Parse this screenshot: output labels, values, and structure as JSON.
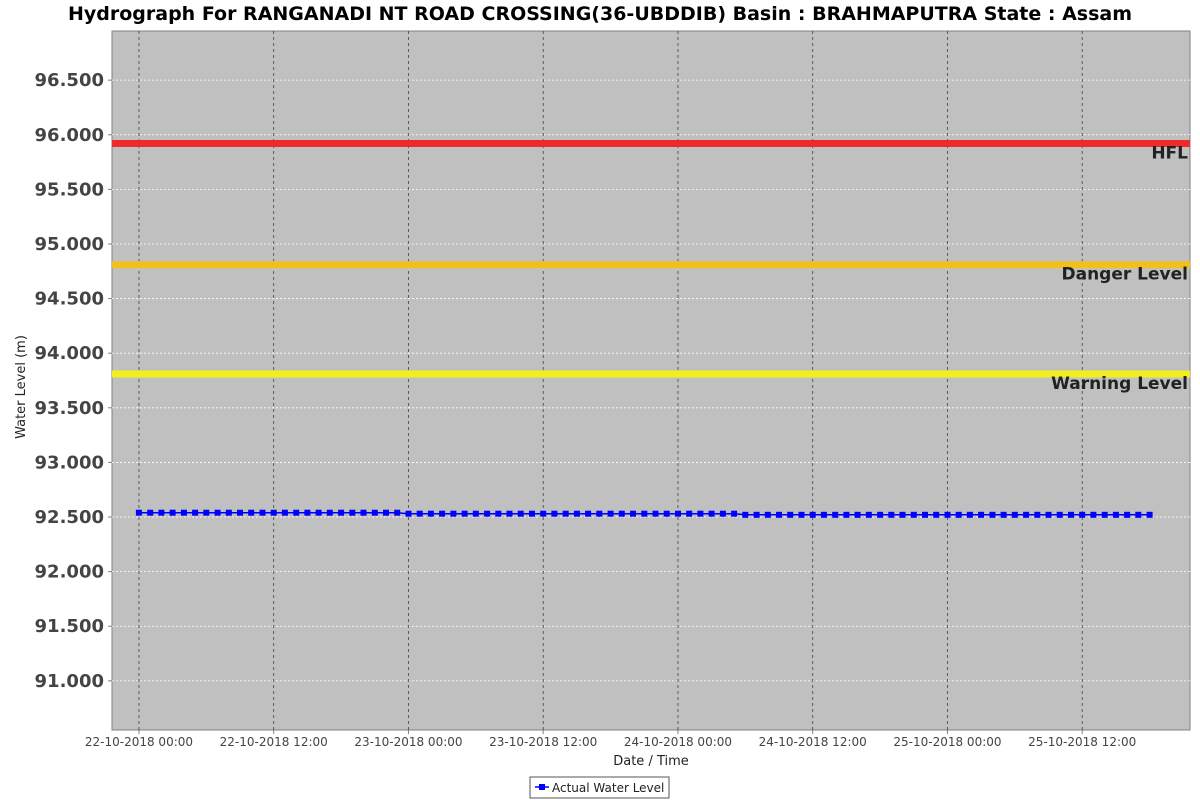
{
  "chart_data": {
    "type": "line",
    "title": "Hydrograph For RANGANADI NT ROAD CROSSING(36-UBDDIB) Basin : BRAHMAPUTRA State : Assam",
    "xlabel": "Date / Time",
    "ylabel": "Water Level (m)",
    "ylim": [
      90.55,
      96.95
    ],
    "xlim": [
      "2018-10-21T21:36",
      "2018-10-25T21:36"
    ],
    "grid": true,
    "yticks": [
      {
        "value": 91.0,
        "label": "91.000"
      },
      {
        "value": 91.5,
        "label": "91.500"
      },
      {
        "value": 92.0,
        "label": "92.000"
      },
      {
        "value": 92.5,
        "label": "92.500"
      },
      {
        "value": 93.0,
        "label": "93.000"
      },
      {
        "value": 93.5,
        "label": "93.500"
      },
      {
        "value": 94.0,
        "label": "94.000"
      },
      {
        "value": 94.5,
        "label": "94.500"
      },
      {
        "value": 95.0,
        "label": "95.000"
      },
      {
        "value": 95.5,
        "label": "95.500"
      },
      {
        "value": 96.0,
        "label": "96.000"
      },
      {
        "value": 96.5,
        "label": "96.500"
      }
    ],
    "xticks": [
      {
        "value": "2018-10-22T00:00",
        "label": "22-10-2018 00:00"
      },
      {
        "value": "2018-10-22T12:00",
        "label": "22-10-2018 12:00"
      },
      {
        "value": "2018-10-23T00:00",
        "label": "23-10-2018 00:00"
      },
      {
        "value": "2018-10-23T12:00",
        "label": "23-10-2018 12:00"
      },
      {
        "value": "2018-10-24T00:00",
        "label": "24-10-2018 00:00"
      },
      {
        "value": "2018-10-24T12:00",
        "label": "24-10-2018 12:00"
      },
      {
        "value": "2018-10-25T00:00",
        "label": "25-10-2018 00:00"
      },
      {
        "value": "2018-10-25T12:00",
        "label": "25-10-2018 12:00"
      }
    ],
    "reference_lines": [
      {
        "name": "HFL",
        "value": 95.92,
        "color": "#ee2b2b"
      },
      {
        "name": "Danger Level",
        "value": 94.81,
        "color": "#f2c01e"
      },
      {
        "name": "Warning Level",
        "value": 93.81,
        "color": "#f2ef1e"
      }
    ],
    "series": [
      {
        "name": "Actual Water Level",
        "color": "#0000ff",
        "marker": "square",
        "interval_hours": 1,
        "start": "2018-10-22T00:00",
        "values": [
          92.54,
          92.54,
          92.54,
          92.54,
          92.54,
          92.54,
          92.54,
          92.54,
          92.54,
          92.54,
          92.54,
          92.54,
          92.54,
          92.54,
          92.54,
          92.54,
          92.54,
          92.54,
          92.54,
          92.54,
          92.54,
          92.54,
          92.54,
          92.54,
          92.53,
          92.53,
          92.53,
          92.53,
          92.53,
          92.53,
          92.53,
          92.53,
          92.53,
          92.53,
          92.53,
          92.53,
          92.53,
          92.53,
          92.53,
          92.53,
          92.53,
          92.53,
          92.53,
          92.53,
          92.53,
          92.53,
          92.53,
          92.53,
          92.53,
          92.53,
          92.53,
          92.53,
          92.53,
          92.53,
          92.52,
          92.52,
          92.52,
          92.52,
          92.52,
          92.52,
          92.52,
          92.52,
          92.52,
          92.52,
          92.52,
          92.52,
          92.52,
          92.52,
          92.52,
          92.52,
          92.52,
          92.52,
          92.52,
          92.52,
          92.52,
          92.52,
          92.52,
          92.52,
          92.52,
          92.52,
          92.52,
          92.52,
          92.52,
          92.52,
          92.52,
          92.52,
          92.52,
          92.52,
          92.52,
          92.52,
          92.52
        ]
      }
    ],
    "legend": "bottom-center"
  }
}
